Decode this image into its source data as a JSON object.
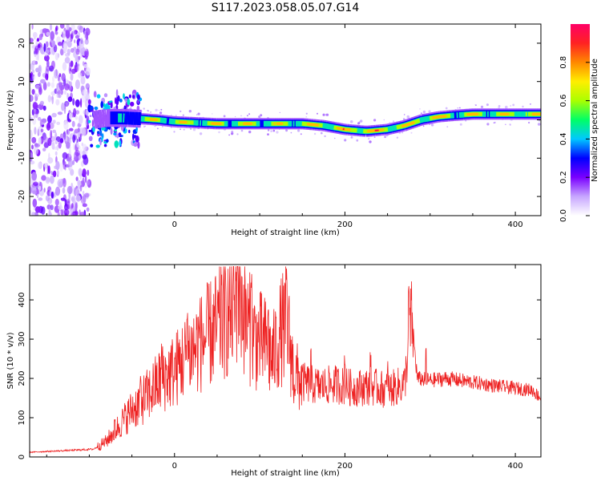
{
  "figure": {
    "title": "S117.2023.058.05.07.G14"
  },
  "chart_data": [
    {
      "type": "heatmap",
      "xlabel": "Height of straight line (km)",
      "ylabel": "Frequency (Hz)",
      "xlim": [
        -170,
        430
      ],
      "ylim": [
        -25,
        25
      ],
      "xticks": [
        0,
        200,
        400
      ],
      "yticks": [
        -20,
        -10,
        0,
        10,
        20
      ],
      "colorbar": {
        "label": "Normalized spectral amplitude",
        "range": [
          0,
          1
        ],
        "ticks": [
          0.0,
          0.2,
          0.4,
          0.6,
          0.8
        ],
        "colormap": [
          "#ffffff",
          "#c7a6ff",
          "#7a00ff",
          "#0000ff",
          "#00c8ff",
          "#00ff66",
          "#aaff00",
          "#ffee00",
          "#ff8800",
          "#ff2222",
          "#ff0066"
        ]
      },
      "ridge": {
        "x": [
          -95,
          -80,
          -60,
          -40,
          -20,
          0,
          50,
          100,
          150,
          175,
          200,
          225,
          250,
          270,
          290,
          310,
          330,
          350,
          400,
          430
        ],
        "frequency": [
          0,
          0.5,
          0.5,
          0.3,
          0,
          -0.5,
          -1,
          -1,
          -1,
          -1.5,
          -2.5,
          -3,
          -2.5,
          -1.5,
          0,
          0.8,
          1.2,
          1.5,
          1.5,
          1.5
        ],
        "peak_amplitude": [
          0.25,
          0.35,
          0.45,
          0.6,
          0.85,
          0.75,
          0.8,
          0.75,
          0.8,
          0.85,
          0.9,
          0.95,
          0.9,
          0.85,
          0.9,
          0.85,
          0.75,
          0.8,
          0.8,
          0.8
        ]
      },
      "noise_region_x": [
        -170,
        -100
      ]
    },
    {
      "type": "line",
      "xlabel": "Height of straight line (km)",
      "ylabel": "SNR (10 * v/v)",
      "xlim": [
        -170,
        430
      ],
      "ylim": [
        0,
        490
      ],
      "xticks": [
        0,
        200,
        400
      ],
      "yticks": [
        0,
        100,
        200,
        300,
        400
      ],
      "color": "#ff2222",
      "x": [
        -170,
        -140,
        -110,
        -95,
        -80,
        -65,
        -50,
        -30,
        -15,
        0,
        15,
        30,
        45,
        60,
        70,
        75,
        85,
        95,
        105,
        115,
        125,
        132,
        140,
        150,
        170,
        190,
        210,
        230,
        250,
        270,
        278,
        285,
        300,
        320,
        350,
        380,
        400,
        420,
        430
      ],
      "y": [
        12,
        15,
        18,
        20,
        40,
        80,
        120,
        160,
        200,
        220,
        260,
        290,
        320,
        350,
        380,
        430,
        340,
        300,
        290,
        250,
        320,
        340,
        210,
        190,
        180,
        185,
        175,
        180,
        170,
        185,
        360,
        200,
        195,
        200,
        190,
        180,
        175,
        170,
        150
      ],
      "spike_x": [
        -70,
        -40,
        -15,
        15,
        30,
        55,
        74,
        90,
        110,
        131,
        160,
        200,
        230,
        250,
        275,
        295
      ]
    }
  ]
}
